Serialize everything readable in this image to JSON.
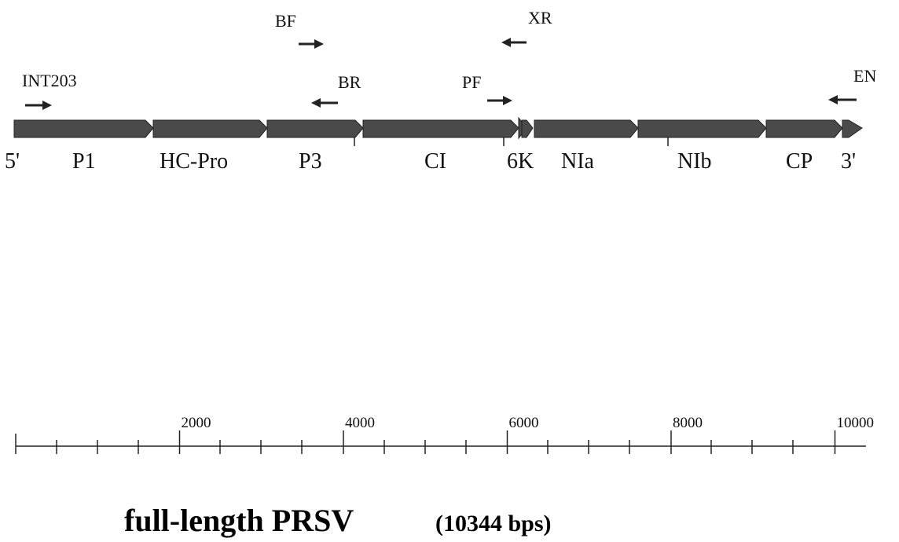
{
  "primers": [
    {
      "label": "INT203"
    },
    {
      "label": "BF"
    },
    {
      "label": "XR"
    },
    {
      "label": "BR"
    },
    {
      "label": "PF"
    },
    {
      "label": "EN"
    }
  ],
  "genome": {
    "five_prime": "5'",
    "three_prime": "3'",
    "genes": [
      "P1",
      "HC-Pro",
      "P3",
      "CI",
      "6K",
      "NIa",
      "NIb",
      "CP"
    ]
  },
  "scale": {
    "ticks": [
      2000,
      4000,
      6000,
      8000,
      10000
    ]
  },
  "title": {
    "name": "full-length PRSV",
    "length": "(10344 bps)"
  }
}
